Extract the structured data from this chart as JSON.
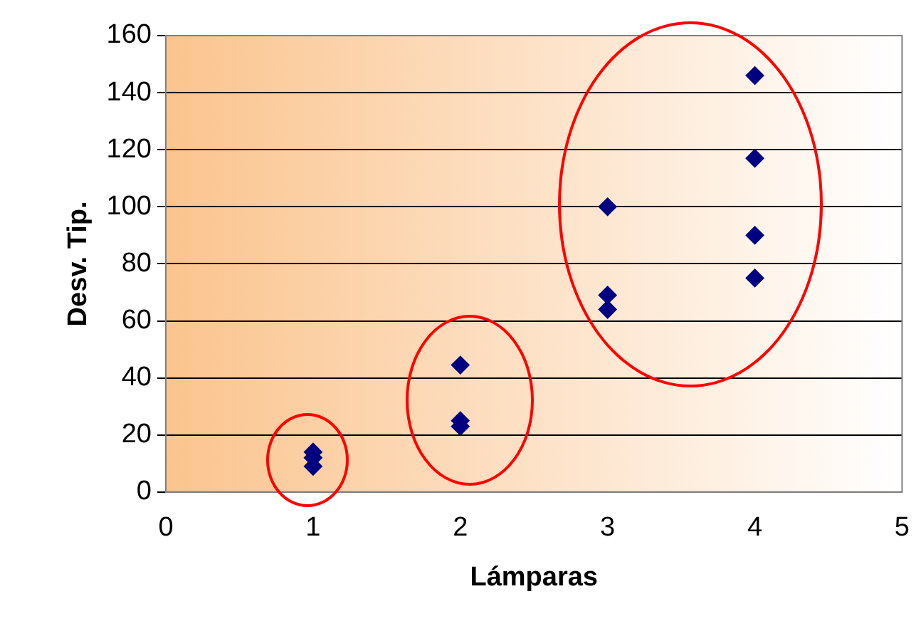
{
  "chart_data": {
    "type": "scatter",
    "xlabel": "Lámparas",
    "ylabel": "Desv. Tip.",
    "x": [
      1,
      1,
      1,
      2,
      2,
      2,
      3,
      3,
      3,
      4,
      4,
      4,
      4
    ],
    "values": [
      14,
      12,
      9,
      44.5,
      25,
      23,
      100,
      69,
      64,
      146,
      117,
      90,
      75
    ],
    "color": "#000080",
    "marker": "diamond",
    "xlim": [
      0,
      5
    ],
    "xticks": [
      0,
      1,
      2,
      3,
      4,
      5
    ],
    "ylim": [
      0,
      160
    ],
    "yticks": [
      0,
      20,
      40,
      60,
      80,
      100,
      120,
      140,
      160
    ],
    "grid": "y",
    "legend": false
  }
}
